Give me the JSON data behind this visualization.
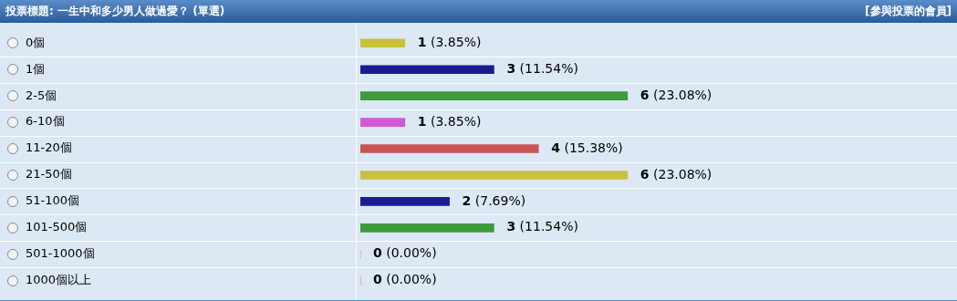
{
  "chart_data": {
    "type": "bar",
    "orientation": "horizontal",
    "title": "投票標題: 一生中和多少男人做過愛？ (單選)",
    "annotations": [
      "[參與投票的會員]"
    ],
    "categories": [
      "0個",
      "1個",
      "2-5個",
      "6-10個",
      "11-20個",
      "21-50個",
      "51-100個",
      "101-500個",
      "501-1000個",
      "1000個以上"
    ],
    "values": [
      1,
      3,
      6,
      1,
      4,
      6,
      2,
      3,
      0,
      0
    ],
    "value_labels": [
      "1 (3.85%)",
      "3 (11.54%)",
      "6 (23.08%)",
      "1 (3.85%)",
      "4 (15.38%)",
      "6 (23.08%)",
      "2 (7.69%)",
      "3 (11.54%)",
      "0 (0.00%)",
      "0 (0.00%)"
    ],
    "colors": [
      "#c8c040",
      "#1c1c90",
      "#3c9c3c",
      "#d458d4",
      "#c85454",
      "#c8c040",
      "#1c1c90",
      "#3c9c3c",
      "#d458d4",
      "#c85454"
    ],
    "xlim": [
      0,
      13.4
    ]
  }
}
